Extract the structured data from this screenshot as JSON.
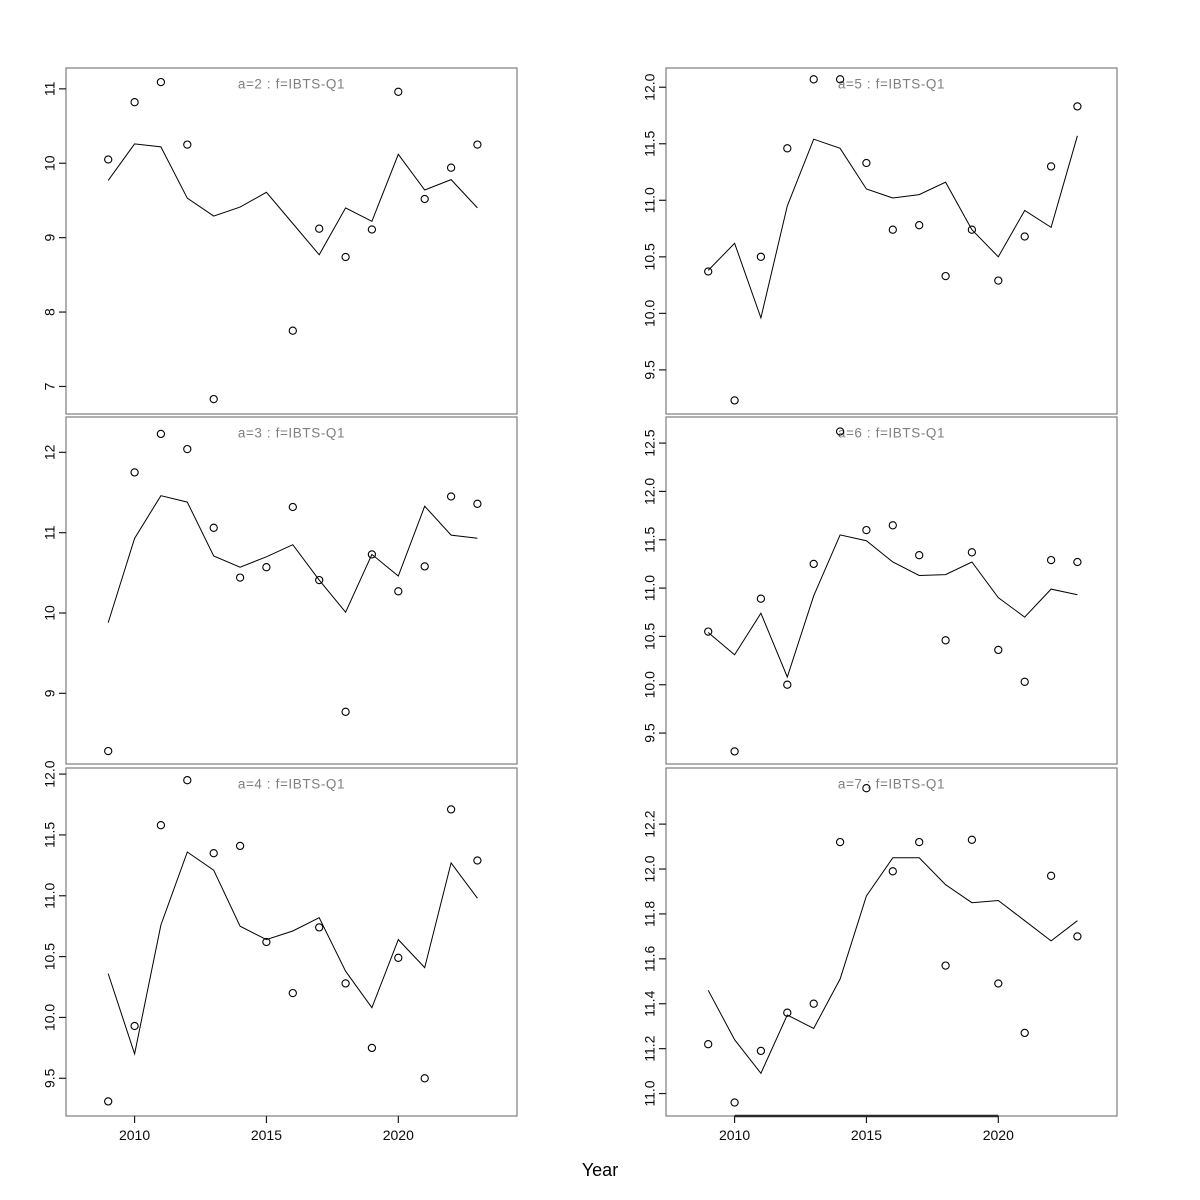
{
  "chart_data": {
    "type": "scatter",
    "description": "3x2 lattice of scatter plots (circles) with fitted trend lines, one panel per age class a=2..7, survey f=IBTS-Q1",
    "xlabel": "Year",
    "x_years": [
      2009,
      2010,
      2011,
      2012,
      2013,
      2014,
      2015,
      2016,
      2017,
      2018,
      2019,
      2020,
      2021,
      2022,
      2023
    ],
    "xlim": [
      2007.4,
      2024.5
    ],
    "x_tick_values": [
      2010,
      2015,
      2020
    ],
    "x_tick_labels": [
      "2010",
      "2015",
      "2020"
    ],
    "grid": "off",
    "legend": "none",
    "panels": [
      {
        "title": "a=2  :  f=IBTS-Q1",
        "row": 0,
        "col": 0,
        "ylim": [
          6.63,
          11.28
        ],
        "y_tick_values": [
          7,
          8,
          9,
          10,
          11
        ],
        "y_tick_labels": [
          "7",
          "8",
          "9",
          "10",
          "11"
        ],
        "points": {
          "years": [
            2009,
            2010,
            2011,
            2012,
            2013,
            2016,
            2017,
            2018,
            2019,
            2020,
            2021,
            2022,
            2023
          ],
          "values": [
            10.05,
            10.82,
            11.09,
            10.25,
            6.83,
            7.75,
            9.12,
            8.74,
            9.11,
            10.96,
            9.52,
            9.94,
            10.25
          ]
        },
        "fitted_line": {
          "years": [
            2009,
            2010,
            2011,
            2012,
            2013,
            2014,
            2015,
            2016,
            2017,
            2018,
            2019,
            2020,
            2021,
            2022,
            2023
          ],
          "values": [
            9.77,
            10.26,
            10.22,
            9.53,
            9.29,
            9.41,
            9.61,
            9.19,
            8.77,
            9.4,
            9.22,
            10.12,
            9.64,
            9.78,
            9.4
          ]
        }
      },
      {
        "title": "a=5  :  f=IBTS-Q1",
        "row": 0,
        "col": 1,
        "ylim": [
          9.11,
          12.17
        ],
        "y_tick_values": [
          9.5,
          10.0,
          10.5,
          11.0,
          11.5,
          12.0
        ],
        "y_tick_labels": [
          "9.5",
          "10.0",
          "10.5",
          "11.0",
          "11.5",
          "12.0"
        ],
        "points": {
          "years": [
            2009,
            2010,
            2011,
            2012,
            2013,
            2014,
            2015,
            2016,
            2017,
            2018,
            2019,
            2020,
            2021,
            2022,
            2023
          ],
          "values": [
            10.37,
            9.23,
            10.5,
            11.46,
            12.07,
            12.07,
            11.33,
            10.74,
            10.78,
            10.33,
            10.74,
            10.29,
            10.68,
            11.3,
            11.83
          ]
        },
        "fitted_line": {
          "years": [
            2009,
            2010,
            2011,
            2012,
            2013,
            2014,
            2015,
            2016,
            2017,
            2018,
            2019,
            2020,
            2021,
            2022,
            2023
          ],
          "values": [
            10.38,
            10.62,
            9.96,
            10.95,
            11.54,
            11.46,
            11.1,
            11.02,
            11.05,
            11.16,
            10.74,
            10.5,
            10.91,
            10.76,
            11.57
          ]
        }
      },
      {
        "title": "a=3  :  f=IBTS-Q1",
        "row": 1,
        "col": 0,
        "ylim": [
          8.12,
          12.44
        ],
        "y_tick_values": [
          9,
          10,
          11,
          12
        ],
        "y_tick_labels": [
          "9",
          "10",
          "11",
          "12"
        ],
        "points": {
          "years": [
            2009,
            2010,
            2011,
            2012,
            2013,
            2014,
            2015,
            2016,
            2017,
            2018,
            2019,
            2020,
            2021,
            2022,
            2023
          ],
          "values": [
            8.28,
            11.75,
            12.23,
            12.04,
            11.06,
            10.44,
            10.57,
            11.32,
            10.41,
            8.77,
            10.73,
            10.27,
            10.58,
            11.45,
            11.36
          ]
        },
        "fitted_line": {
          "years": [
            2009,
            2010,
            2011,
            2012,
            2013,
            2014,
            2015,
            2016,
            2017,
            2018,
            2019,
            2020,
            2021,
            2022,
            2023
          ],
          "values": [
            9.88,
            10.93,
            11.46,
            11.38,
            10.71,
            10.57,
            10.7,
            10.85,
            10.41,
            10.01,
            10.73,
            10.46,
            11.33,
            10.97,
            10.93
          ]
        }
      },
      {
        "title": "a=6  :  f=IBTS-Q1",
        "row": 1,
        "col": 1,
        "ylim": [
          9.18,
          12.77
        ],
        "y_tick_values": [
          9.5,
          10.0,
          10.5,
          11.0,
          11.5,
          12.0,
          12.5
        ],
        "y_tick_labels": [
          "9.5",
          "10.0",
          "10.5",
          "11.0",
          "11.5",
          "12.0",
          "12.5"
        ],
        "points": {
          "years": [
            2009,
            2010,
            2011,
            2012,
            2013,
            2014,
            2015,
            2016,
            2017,
            2018,
            2019,
            2020,
            2021,
            2022,
            2023
          ],
          "values": [
            10.55,
            9.31,
            10.89,
            10.0,
            11.25,
            12.62,
            11.6,
            11.65,
            11.34,
            10.46,
            11.37,
            10.36,
            10.03,
            11.29,
            11.27
          ]
        },
        "fitted_line": {
          "years": [
            2009,
            2010,
            2011,
            2012,
            2013,
            2014,
            2015,
            2016,
            2017,
            2018,
            2019,
            2020,
            2021,
            2022,
            2023
          ],
          "values": [
            10.54,
            10.31,
            10.74,
            10.08,
            10.92,
            11.55,
            11.49,
            11.27,
            11.13,
            11.14,
            11.27,
            10.9,
            10.7,
            10.99,
            10.93
          ]
        }
      },
      {
        "title": "a=4  :  f=IBTS-Q1",
        "row": 2,
        "col": 0,
        "ylim": [
          9.19,
          12.05
        ],
        "y_tick_values": [
          9.5,
          10.0,
          10.5,
          11.0,
          11.5,
          12.0
        ],
        "y_tick_labels": [
          "9.5",
          "10.0",
          "10.5",
          "11.0",
          "11.5",
          "12.0"
        ],
        "points": {
          "years": [
            2009,
            2010,
            2011,
            2012,
            2013,
            2014,
            2015,
            2016,
            2017,
            2018,
            2019,
            2020,
            2021,
            2022,
            2023
          ],
          "values": [
            9.31,
            9.93,
            11.58,
            11.95,
            11.35,
            11.41,
            10.62,
            10.2,
            10.74,
            10.28,
            9.75,
            10.49,
            9.5,
            11.71,
            11.29
          ]
        },
        "fitted_line": {
          "years": [
            2009,
            2010,
            2011,
            2012,
            2013,
            2014,
            2015,
            2016,
            2017,
            2018,
            2019,
            2020,
            2021,
            2022,
            2023
          ],
          "values": [
            10.36,
            9.7,
            10.76,
            11.36,
            11.21,
            10.75,
            10.64,
            10.71,
            10.82,
            10.38,
            10.08,
            10.64,
            10.41,
            11.27,
            10.98
          ]
        }
      },
      {
        "title": "a=7  :  f=IBTS-Q1",
        "row": 2,
        "col": 1,
        "ylim": [
          10.9,
          12.45
        ],
        "y_tick_values": [
          11.0,
          11.2,
          11.4,
          11.6,
          11.8,
          12.0,
          12.2
        ],
        "y_tick_labels": [
          "11.0",
          "11.2",
          "11.4",
          "11.6",
          "11.8",
          "12.0",
          "12.2"
        ],
        "points": {
          "years": [
            2009,
            2010,
            2011,
            2012,
            2013,
            2014,
            2015,
            2016,
            2017,
            2018,
            2019,
            2020,
            2021,
            2022,
            2023
          ],
          "values": [
            11.22,
            10.96,
            11.19,
            11.36,
            11.4,
            12.12,
            12.36,
            11.99,
            12.12,
            11.57,
            12.13,
            11.49,
            11.27,
            11.97,
            11.7
          ]
        },
        "fitted_line": {
          "years": [
            2009,
            2010,
            2011,
            2012,
            2013,
            2014,
            2015,
            2016,
            2017,
            2018,
            2019,
            2020,
            2021,
            2022,
            2023
          ],
          "values": [
            11.46,
            11.24,
            11.09,
            11.35,
            11.29,
            11.51,
            11.88,
            12.05,
            12.05,
            11.93,
            11.85,
            11.86,
            11.77,
            11.68,
            11.77
          ]
        },
        "bottom_axis_dark_segment": [
          2010,
          2020
        ]
      }
    ]
  },
  "style": {
    "background_color": "#ffffff",
    "panel_border_color": "#7d7d7d",
    "panel_title_color": "#7f7f7f",
    "tick_color": "#1a1a1a",
    "tick_label_color": "#0a0a0a",
    "line_color": "#000000",
    "point_stroke_color": "#000000",
    "dark_axis_color": "#2a2a2a"
  }
}
